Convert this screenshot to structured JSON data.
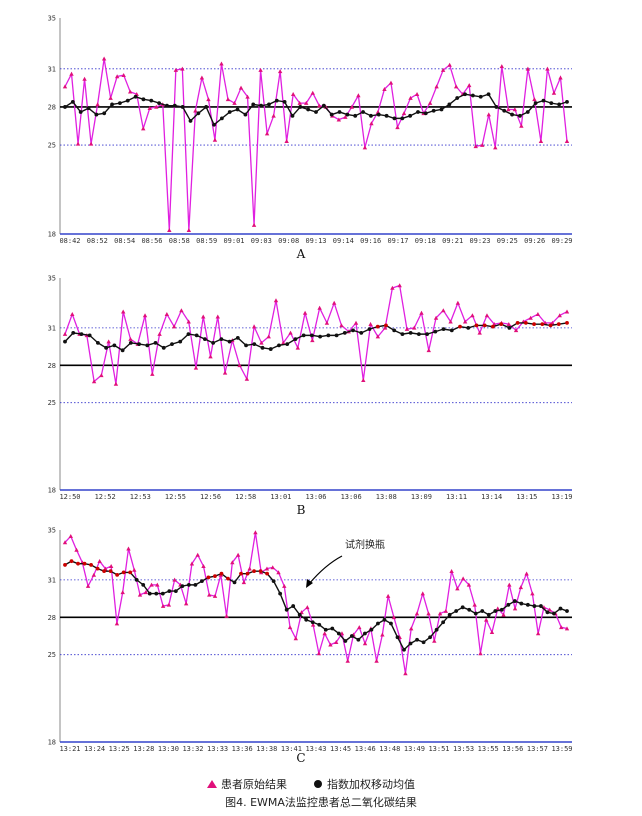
{
  "figure": {
    "caption": "图4. EWMA法监控患者总二氧化碳结果",
    "legend": {
      "raw_label": "患者原始结果",
      "ewma_label": "指数加权移动均值"
    },
    "colors": {
      "raw": "#e020e0",
      "raw_marker": "#e0107a",
      "ewma": "#111111",
      "ewma_alarm": "#cc0000",
      "limit": "#3333cc",
      "axis": "#3344cc",
      "target": "#000000"
    }
  },
  "chart_data": [
    {
      "type": "line",
      "panel_label": "A",
      "ylim": [
        18,
        35
      ],
      "y_ticks": [
        18,
        25,
        28,
        31,
        35
      ],
      "target": 28,
      "limits": [
        25,
        31
      ],
      "x_tick_labels": [
        "08:42",
        "08:52",
        "08:54",
        "08:56",
        "08:58",
        "08:59",
        "09:01",
        "09:03",
        "09:08",
        "09:13",
        "09:14",
        "09:16",
        "09:17",
        "09:18",
        "09:21",
        "09:23",
        "09:25",
        "09:26",
        "09:29"
      ],
      "series": [
        {
          "key": "raw",
          "values": [
            29.6,
            30.6,
            25.1,
            30.2,
            25.1,
            28.2,
            31.8,
            28.7,
            30.4,
            30.5,
            29.2,
            29.0,
            26.3,
            27.9,
            28.0,
            28.2,
            18.3,
            30.9,
            31.0,
            18.3,
            27.7,
            30.3,
            28.6,
            25.4,
            31.4,
            28.6,
            28.3,
            29.5,
            28.8,
            18.7,
            30.9,
            25.9,
            27.3,
            30.8,
            25.3,
            29.0,
            28.3,
            28.3,
            29.1,
            28.1,
            28.0,
            27.3,
            27.0,
            27.2,
            28.0,
            28.9,
            24.8,
            26.7,
            27.6,
            29.4,
            29.9,
            26.4,
            27.5,
            28.7,
            29.0,
            27.5,
            28.3,
            29.6,
            30.9,
            31.3,
            29.6,
            29.0,
            29.7,
            24.9,
            25.0,
            27.4,
            24.8,
            31.2,
            27.8,
            27.8,
            26.5,
            31.0,
            28.6,
            25.3,
            31.0,
            29.1,
            30.3,
            25.3
          ]
        },
        {
          "key": "ewma",
          "values": [
            28.0,
            28.4,
            27.6,
            27.9,
            27.4,
            27.5,
            28.2,
            28.3,
            28.5,
            28.8,
            28.6,
            28.5,
            28.3,
            28.1,
            28.1,
            28.0,
            26.9,
            27.5,
            28.0,
            26.6,
            27.1,
            27.6,
            27.8,
            27.4,
            28.2,
            28.1,
            28.2,
            28.5,
            28.4,
            27.3,
            28.0,
            27.8,
            27.6,
            28.1,
            27.4,
            27.6,
            27.4,
            27.3,
            27.6,
            27.3,
            27.4,
            27.3,
            27.1,
            27.1,
            27.3,
            27.6,
            27.5,
            27.7,
            27.8,
            28.2,
            28.7,
            29.0,
            28.9,
            28.8,
            29.0,
            28.0,
            27.7,
            27.4,
            27.3,
            27.6,
            28.3,
            28.5,
            28.3,
            28.2,
            28.4
          ]
        }
      ]
    },
    {
      "type": "line",
      "panel_label": "B",
      "ylim": [
        18,
        35
      ],
      "y_ticks": [
        18,
        25,
        28,
        31,
        35
      ],
      "target": 28,
      "limits": [
        25,
        31
      ],
      "x_tick_labels": [
        "12:50",
        "12:52",
        "12:53",
        "12:55",
        "12:56",
        "12:58",
        "13:01",
        "13:06",
        "13:06",
        "13:08",
        "13:09",
        "13:11",
        "13:14",
        "13:15",
        "13:19"
      ],
      "series": [
        {
          "key": "raw",
          "values": [
            30.5,
            32.1,
            30.5,
            30.4,
            26.7,
            27.2,
            29.9,
            26.5,
            32.3,
            30.1,
            29.7,
            32.0,
            27.3,
            30.5,
            32.1,
            31.1,
            32.4,
            31.5,
            27.8,
            31.9,
            28.7,
            31.9,
            27.4,
            30.0,
            28.0,
            26.9,
            31.1,
            29.8,
            30.3,
            33.2,
            29.8,
            30.6,
            29.4,
            32.2,
            30.0,
            32.6,
            31.4,
            33.0,
            31.2,
            30.7,
            31.4,
            26.8,
            31.3,
            30.3,
            31.0,
            34.2,
            34.4,
            30.9,
            31.0,
            32.2,
            29.2,
            31.8,
            32.4,
            31.5,
            33.0,
            31.5,
            32.0,
            30.6,
            32.0,
            31.3,
            31.4,
            31.3,
            30.8,
            31.5,
            31.8,
            32.1,
            31.4,
            31.4,
            32.0,
            32.3
          ]
        },
        {
          "key": "ewma",
          "values": [
            29.9,
            30.6,
            30.5,
            30.4,
            29.8,
            29.4,
            29.6,
            29.2,
            29.8,
            29.7,
            29.6,
            29.8,
            29.4,
            29.7,
            29.9,
            30.5,
            30.4,
            30.1,
            29.8,
            30.1,
            29.9,
            30.2,
            29.6,
            29.7,
            29.4,
            29.3,
            29.6,
            29.7,
            30.1,
            30.4,
            30.4,
            30.3,
            30.4,
            30.4,
            30.6,
            30.8,
            30.6,
            30.9,
            31.1,
            31.2,
            30.8,
            30.5,
            30.6,
            30.5,
            30.5,
            30.7,
            30.9,
            30.8,
            31.1,
            31.0,
            31.2,
            31.2,
            31.1,
            31.3,
            31.0,
            31.4,
            31.4,
            31.3,
            31.3,
            31.2,
            31.3,
            31.4
          ]
        }
      ]
    },
    {
      "type": "line",
      "panel_label": "C",
      "ylim": [
        18,
        35
      ],
      "y_ticks": [
        18,
        25,
        28,
        31,
        35
      ],
      "target": 28,
      "limits": [
        25,
        31
      ],
      "annotation": "试剂换瓶",
      "x_tick_labels": [
        "13:21",
        "13:24",
        "13:25",
        "13:28",
        "13:30",
        "13:32",
        "13:33",
        "13:36",
        "13:38",
        "13:41",
        "13:43",
        "13:45",
        "13:46",
        "13:48",
        "13:49",
        "13:51",
        "13:53",
        "13:55",
        "13:56",
        "13:57",
        "13:59"
      ],
      "series": [
        {
          "key": "raw",
          "values": [
            34.0,
            34.5,
            33.4,
            32.4,
            30.5,
            31.4,
            32.5,
            31.9,
            32.1,
            27.5,
            30.0,
            33.5,
            31.8,
            29.8,
            30.0,
            30.6,
            30.6,
            28.9,
            29.0,
            31.0,
            30.6,
            29.1,
            32.3,
            33.0,
            32.1,
            29.8,
            29.7,
            31.4,
            28.1,
            32.4,
            33.0,
            30.8,
            31.9,
            34.8,
            31.6,
            31.9,
            32.0,
            31.6,
            30.5,
            27.2,
            26.3,
            28.4,
            28.8,
            27.4,
            25.1,
            26.7,
            25.8,
            26.0,
            26.7,
            24.5,
            26.6,
            27.2,
            25.9,
            27.1,
            24.5,
            26.6,
            29.7,
            28.0,
            26.4,
            23.5,
            27.1,
            28.3,
            29.9,
            28.3,
            26.1,
            28.3,
            28.5,
            31.7,
            30.3,
            31.1,
            30.6,
            29.0,
            25.1,
            27.8,
            26.8,
            28.7,
            28.2,
            30.6,
            28.7,
            30.4,
            31.5,
            29.9,
            26.7,
            28.8,
            28.6,
            28.3,
            27.2,
            27.1
          ]
        },
        {
          "key": "ewma",
          "values": [
            32.2,
            32.5,
            32.3,
            32.3,
            32.2,
            31.9,
            31.7,
            31.7,
            31.4,
            31.6,
            31.6,
            31.0,
            30.6,
            29.9,
            29.9,
            29.9,
            30.1,
            30.1,
            30.5,
            30.6,
            30.6,
            30.9,
            31.2,
            31.3,
            31.5,
            31.1,
            30.8,
            31.5,
            31.5,
            31.7,
            31.7,
            31.5,
            30.9,
            29.9,
            28.6,
            28.9,
            28.2,
            27.8,
            27.6,
            27.4,
            27.0,
            27.1,
            26.7,
            26.1,
            26.5,
            26.2,
            26.7,
            27.0,
            27.5,
            27.8,
            27.5,
            26.4,
            25.4,
            25.9,
            26.2,
            26.0,
            26.4,
            27.0,
            27.6,
            28.2,
            28.5,
            28.8,
            28.6,
            28.3,
            28.5,
            28.2,
            28.5,
            28.6,
            29.0,
            29.3,
            29.1,
            29.0,
            28.9,
            28.9,
            28.4,
            28.3,
            28.7,
            28.5
          ]
        }
      ]
    }
  ]
}
